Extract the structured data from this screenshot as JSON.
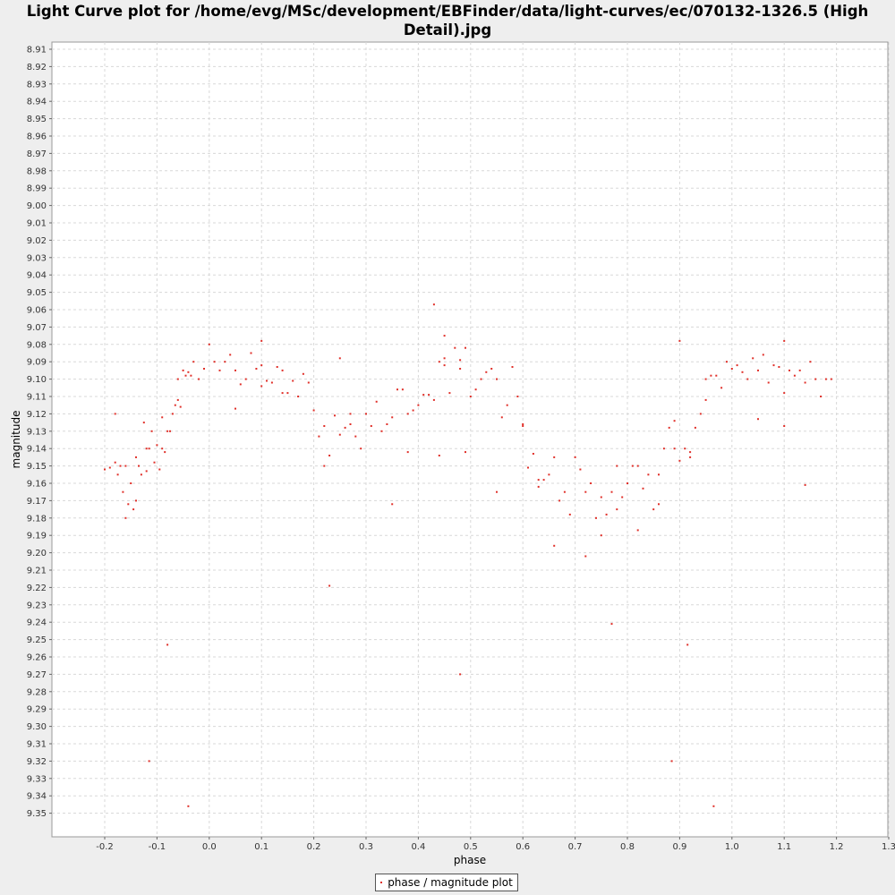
{
  "title": "Light Curve plot for /home/evg/MSc/development/EBFinder/data/light-curves/ec/070132-1326.5 (High Detail).jpg",
  "colors": {
    "background": "#eeeeee",
    "plot_bg": "#ffffff",
    "grid": "#d8d8d8",
    "point": "#e0302a"
  },
  "chart_data": {
    "type": "scatter",
    "xlabel": "phase",
    "ylabel": "magnitude",
    "xlim": [
      -0.3,
      1.3
    ],
    "ylim": [
      8.91,
      9.35
    ],
    "y_inverted": true,
    "grid": true,
    "legend_position": "bottom-center",
    "x_ticks": [
      "-0.2",
      "-0.1",
      "0.0",
      "0.1",
      "0.2",
      "0.3",
      "0.4",
      "0.5",
      "0.6",
      "0.7",
      "0.8",
      "0.9",
      "1.0",
      "1.1",
      "1.2",
      "1.3"
    ],
    "y_ticks": [
      "8.91",
      "8.92",
      "8.93",
      "8.94",
      "8.95",
      "8.96",
      "8.97",
      "8.98",
      "8.99",
      "9.00",
      "9.01",
      "9.02",
      "9.03",
      "9.04",
      "9.05",
      "9.06",
      "9.07",
      "9.08",
      "9.09",
      "9.10",
      "9.11",
      "9.12",
      "9.13",
      "9.14",
      "9.15",
      "9.16",
      "9.17",
      "9.18",
      "9.19",
      "9.20",
      "9.21",
      "9.22",
      "9.23",
      "9.24",
      "9.25",
      "9.26",
      "9.27",
      "9.28",
      "9.29",
      "9.30",
      "9.31",
      "9.32",
      "9.33",
      "9.34",
      "9.35"
    ],
    "series": [
      {
        "name": "phase / magnitude plot",
        "x": [
          -0.2,
          -0.19,
          -0.18,
          -0.175,
          -0.17,
          -0.165,
          -0.16,
          -0.155,
          -0.15,
          -0.145,
          -0.14,
          -0.135,
          -0.13,
          -0.125,
          -0.12,
          -0.115,
          -0.11,
          -0.105,
          -0.1,
          -0.095,
          -0.09,
          -0.085,
          -0.08,
          -0.075,
          -0.07,
          -0.065,
          -0.06,
          -0.055,
          -0.05,
          -0.045,
          -0.04,
          -0.035,
          -0.03,
          -0.02,
          -0.01,
          0.0,
          0.01,
          0.02,
          0.03,
          0.04,
          0.05,
          0.06,
          0.07,
          0.08,
          0.09,
          0.1,
          0.11,
          0.12,
          0.13,
          0.14,
          0.15,
          0.16,
          0.17,
          0.18,
          0.19,
          0.2,
          0.21,
          0.22,
          0.23,
          0.24,
          0.25,
          0.26,
          0.27,
          0.28,
          0.29,
          0.3,
          0.31,
          0.32,
          0.33,
          0.34,
          0.35,
          0.36,
          0.37,
          0.38,
          0.39,
          0.4,
          0.41,
          0.42,
          0.43,
          0.44,
          0.45,
          0.46,
          0.47,
          0.48,
          0.49,
          0.5,
          0.51,
          0.52,
          0.53,
          0.54,
          0.55,
          0.56,
          0.57,
          0.58,
          0.59,
          0.6,
          0.61,
          0.62,
          0.63,
          0.64,
          0.65,
          0.66,
          0.67,
          0.68,
          0.69,
          0.7,
          0.71,
          0.72,
          0.73,
          0.74,
          0.75,
          0.76,
          0.77,
          0.78,
          0.79,
          0.8,
          0.81,
          0.82,
          0.83,
          0.84,
          0.85,
          0.86,
          0.87,
          0.88,
          0.89,
          0.9,
          0.91,
          0.92,
          0.93,
          0.94,
          0.95,
          0.96,
          0.97,
          0.98,
          0.99,
          1.0,
          1.01,
          1.02,
          1.03,
          1.04,
          1.05,
          1.06,
          1.07,
          1.08,
          1.09,
          1.1,
          1.11,
          1.12,
          1.13,
          1.14,
          1.15,
          1.16,
          1.17,
          1.18,
          1.19,
          -0.18,
          -0.16,
          -0.14,
          -0.12,
          -0.09,
          -0.06,
          0.05,
          0.1,
          0.14,
          0.22,
          0.25,
          0.27,
          0.35,
          0.38,
          0.44,
          0.45,
          0.48,
          0.49,
          0.55,
          0.6,
          0.63,
          0.66,
          0.72,
          0.75,
          0.78,
          0.82,
          0.86,
          0.89,
          0.92,
          0.95,
          1.05,
          1.1,
          1.14,
          -0.115,
          -0.04,
          0.23,
          0.48,
          0.77,
          0.885,
          0.915,
          0.965,
          -0.08,
          0.1,
          0.43,
          0.45,
          0.9,
          1.1
        ],
        "y": [
          9.152,
          9.151,
          9.148,
          9.155,
          9.15,
          9.165,
          9.15,
          9.172,
          9.16,
          9.175,
          9.145,
          9.15,
          9.155,
          9.125,
          9.14,
          9.14,
          9.13,
          9.148,
          9.138,
          9.152,
          9.14,
          9.142,
          9.13,
          9.13,
          9.12,
          9.115,
          9.1,
          9.116,
          9.095,
          9.098,
          9.096,
          9.098,
          9.09,
          9.1,
          9.094,
          9.08,
          9.09,
          9.095,
          9.09,
          9.086,
          9.095,
          9.103,
          9.1,
          9.085,
          9.094,
          9.104,
          9.101,
          9.102,
          9.093,
          9.095,
          9.108,
          9.101,
          9.11,
          9.097,
          9.102,
          9.118,
          9.133,
          9.15,
          9.144,
          9.121,
          9.132,
          9.128,
          9.12,
          9.133,
          9.14,
          9.12,
          9.127,
          9.113,
          9.13,
          9.126,
          9.122,
          9.106,
          9.106,
          9.12,
          9.118,
          9.115,
          9.109,
          9.109,
          9.112,
          9.09,
          9.088,
          9.108,
          9.082,
          9.089,
          9.082,
          9.11,
          9.106,
          9.1,
          9.096,
          9.094,
          9.1,
          9.122,
          9.115,
          9.093,
          9.11,
          9.126,
          9.151,
          9.143,
          9.162,
          9.158,
          9.155,
          9.145,
          9.17,
          9.165,
          9.178,
          9.145,
          9.152,
          9.165,
          9.16,
          9.18,
          9.168,
          9.178,
          9.165,
          9.175,
          9.168,
          9.16,
          9.15,
          9.15,
          9.163,
          9.155,
          9.175,
          9.155,
          9.14,
          9.128,
          9.14,
          9.147,
          9.14,
          9.145,
          9.128,
          9.12,
          9.1,
          9.098,
          9.098,
          9.105,
          9.09,
          9.094,
          9.092,
          9.096,
          9.1,
          9.088,
          9.095,
          9.086,
          9.102,
          9.092,
          9.093,
          9.108,
          9.095,
          9.098,
          9.095,
          9.102,
          9.09,
          9.1,
          9.11,
          9.1,
          9.1,
          9.12,
          9.18,
          9.17,
          9.153,
          9.122,
          9.112,
          9.117,
          9.092,
          9.108,
          9.127,
          9.088,
          9.126,
          9.172,
          9.142,
          9.144,
          9.092,
          9.094,
          9.142,
          9.165,
          9.127,
          9.158,
          9.196,
          9.202,
          9.19,
          9.15,
          9.187,
          9.172,
          9.124,
          9.142,
          9.112,
          9.123,
          9.127,
          9.161,
          9.32,
          9.346,
          9.219,
          9.27,
          9.241,
          9.32,
          9.253,
          9.346,
          9.253,
          9.078,
          9.057,
          9.075,
          9.078,
          9.078
        ]
      }
    ]
  }
}
